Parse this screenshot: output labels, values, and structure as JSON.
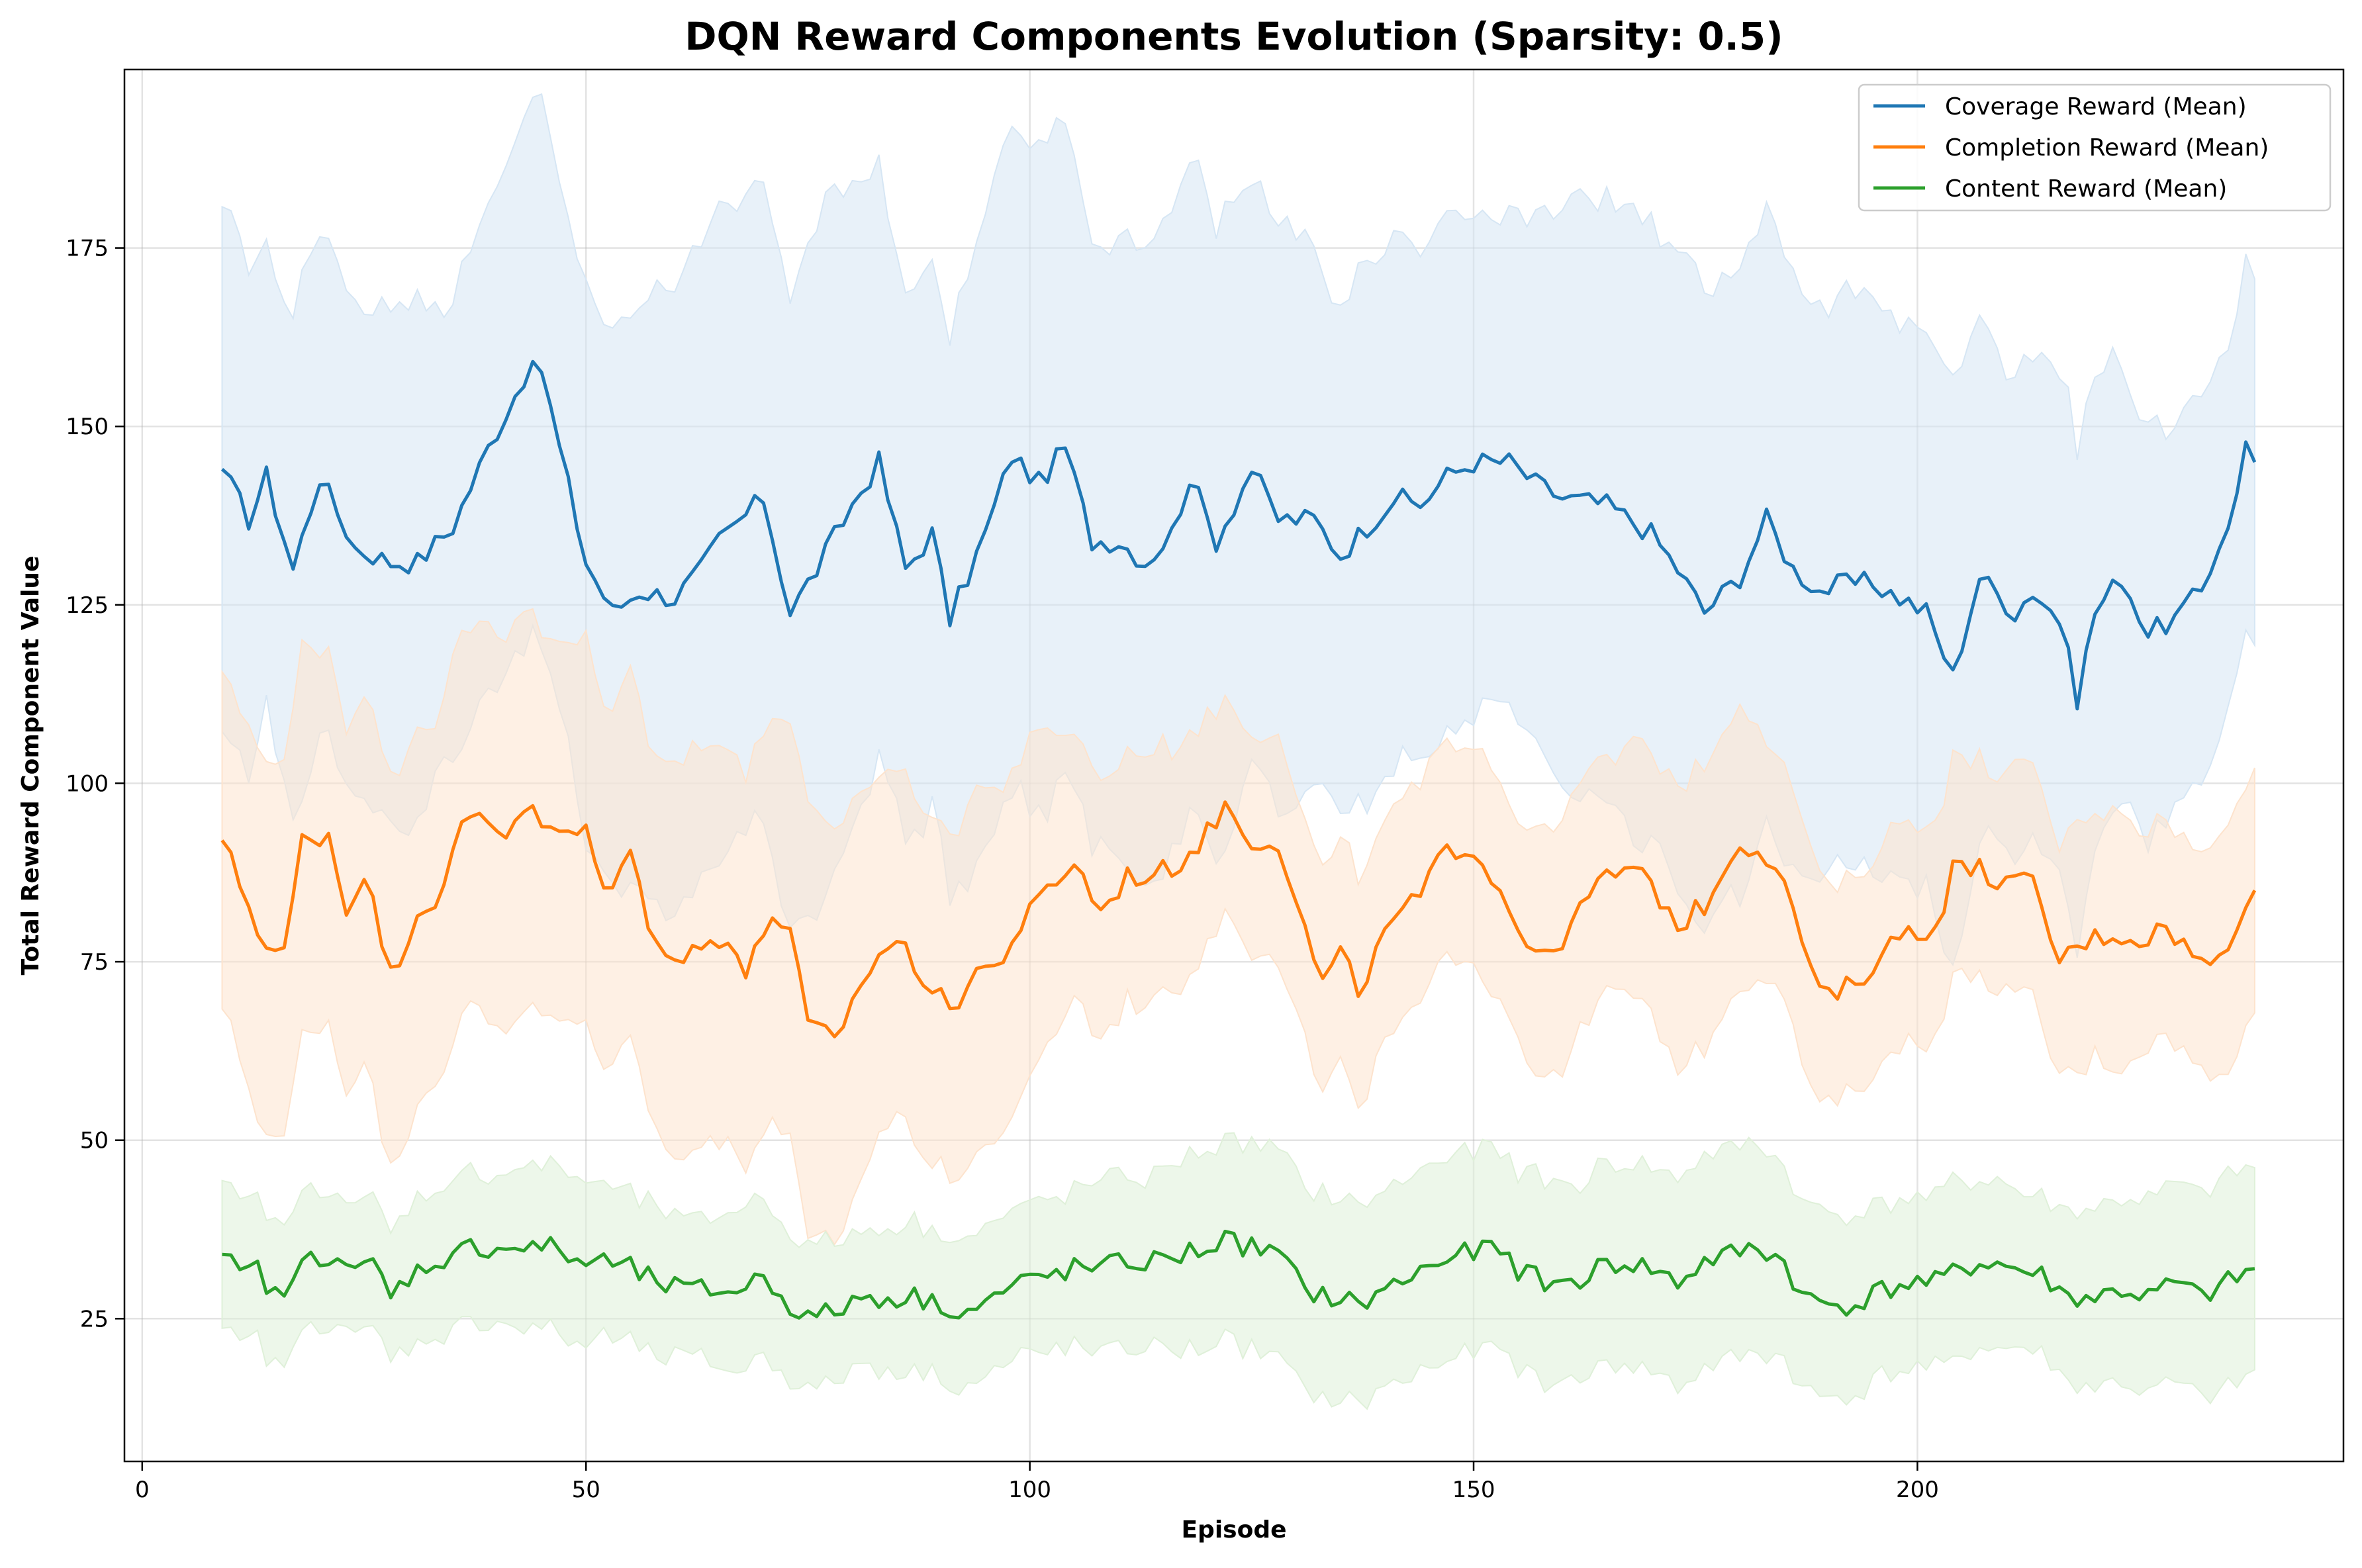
{
  "chart_data": {
    "type": "line",
    "title": "DQN Reward Components Evolution (Sparsity: 0.5)",
    "xlabel": "Episode",
    "ylabel": "Total Reward Component Value",
    "xlim": [
      -2,
      248
    ],
    "ylim": [
      5,
      200
    ],
    "xticks": [
      0,
      50,
      100,
      150,
      200
    ],
    "yticks": [
      25,
      50,
      75,
      100,
      125,
      150,
      175
    ],
    "grid": true,
    "legend_position": "top-right",
    "series": [
      {
        "name": "Coverage Reward (Mean)",
        "color": "#1f77b4",
        "band_fill": "#d6e6f4",
        "points": [
          [
            9,
            144
          ],
          [
            12,
            137
          ],
          [
            14,
            143
          ],
          [
            17,
            130
          ],
          [
            20,
            143
          ],
          [
            24,
            133
          ],
          [
            28,
            131
          ],
          [
            31,
            131
          ],
          [
            35,
            136
          ],
          [
            39,
            147
          ],
          [
            43,
            157
          ],
          [
            45,
            158
          ],
          [
            47,
            147
          ],
          [
            50,
            131
          ],
          [
            53,
            124
          ],
          [
            56,
            127
          ],
          [
            60,
            126
          ],
          [
            63,
            130
          ],
          [
            65,
            134
          ],
          [
            70,
            140
          ],
          [
            73,
            124
          ],
          [
            76,
            130
          ],
          [
            80,
            139
          ],
          [
            83,
            145
          ],
          [
            86,
            130
          ],
          [
            89,
            135
          ],
          [
            91,
            123
          ],
          [
            95,
            135
          ],
          [
            98,
            146
          ],
          [
            101,
            142
          ],
          [
            104,
            147
          ],
          [
            107,
            134
          ],
          [
            110,
            134
          ],
          [
            113,
            131
          ],
          [
            116,
            135
          ],
          [
            118,
            143
          ],
          [
            121,
            134
          ],
          [
            125,
            144
          ],
          [
            128,
            137
          ],
          [
            132,
            137
          ],
          [
            135,
            132
          ],
          [
            138,
            136
          ],
          [
            141,
            140
          ],
          [
            144,
            139
          ],
          [
            147,
            143
          ],
          [
            150,
            145
          ],
          [
            154,
            145
          ],
          [
            157,
            142
          ],
          [
            160,
            140
          ],
          [
            165,
            139
          ],
          [
            170,
            135
          ],
          [
            173,
            130
          ],
          [
            176,
            124
          ],
          [
            180,
            129
          ],
          [
            183,
            137
          ],
          [
            186,
            130
          ],
          [
            189,
            127
          ],
          [
            192,
            128
          ],
          [
            195,
            128
          ],
          [
            198,
            126
          ],
          [
            201,
            124
          ],
          [
            204,
            115
          ],
          [
            207,
            129
          ],
          [
            211,
            124
          ],
          [
            213,
            127
          ],
          [
            216,
            123
          ],
          [
            218,
            112
          ],
          [
            220,
            124
          ],
          [
            223,
            129
          ],
          [
            226,
            121
          ],
          [
            229,
            123
          ],
          [
            232,
            127
          ],
          [
            236,
            140
          ],
          [
            237,
            148
          ],
          [
            238,
            145
          ]
        ],
        "band_width": 37
      },
      {
        "name": "Completion Reward (Mean)",
        "color": "#ff7f0e",
        "band_fill": "#fde3cd",
        "points": [
          [
            9,
            92
          ],
          [
            12,
            83
          ],
          [
            14,
            77
          ],
          [
            16,
            76
          ],
          [
            18,
            92
          ],
          [
            21,
            93
          ],
          [
            23,
            82
          ],
          [
            25,
            88
          ],
          [
            28,
            73
          ],
          [
            31,
            82
          ],
          [
            34,
            85
          ],
          [
            36,
            94
          ],
          [
            38,
            96
          ],
          [
            41,
            93
          ],
          [
            43,
            97
          ],
          [
            46,
            93
          ],
          [
            50,
            93
          ],
          [
            52,
            85
          ],
          [
            55,
            90
          ],
          [
            57,
            81
          ],
          [
            60,
            75
          ],
          [
            63,
            77
          ],
          [
            66,
            79
          ],
          [
            68,
            73
          ],
          [
            71,
            82
          ],
          [
            73,
            79
          ],
          [
            75,
            66
          ],
          [
            78,
            64
          ],
          [
            81,
            72
          ],
          [
            83,
            76
          ],
          [
            85,
            78
          ],
          [
            88,
            73
          ],
          [
            91,
            68
          ],
          [
            94,
            74
          ],
          [
            96,
            74
          ],
          [
            99,
            80
          ],
          [
            102,
            85
          ],
          [
            105,
            89
          ],
          [
            108,
            82
          ],
          [
            111,
            87
          ],
          [
            114,
            87
          ],
          [
            117,
            89
          ],
          [
            120,
            93
          ],
          [
            122,
            97
          ],
          [
            125,
            92
          ],
          [
            128,
            92
          ],
          [
            130,
            83
          ],
          [
            133,
            72
          ],
          [
            135,
            76
          ],
          [
            137,
            71
          ],
          [
            141,
            81
          ],
          [
            144,
            84
          ],
          [
            147,
            91
          ],
          [
            150,
            91
          ],
          [
            153,
            85
          ],
          [
            155,
            80
          ],
          [
            158,
            75
          ],
          [
            161,
            80
          ],
          [
            164,
            86
          ],
          [
            167,
            88
          ],
          [
            170,
            86
          ],
          [
            173,
            80
          ],
          [
            176,
            83
          ],
          [
            180,
            92
          ],
          [
            183,
            90
          ],
          [
            186,
            83
          ],
          [
            188,
            73
          ],
          [
            190,
            70
          ],
          [
            193,
            72
          ],
          [
            196,
            76
          ],
          [
            199,
            80
          ],
          [
            202,
            79
          ],
          [
            204,
            88
          ],
          [
            207,
            88
          ],
          [
            210,
            86
          ],
          [
            213,
            86
          ],
          [
            216,
            75
          ],
          [
            219,
            78
          ],
          [
            222,
            79
          ],
          [
            225,
            78
          ],
          [
            228,
            80
          ],
          [
            231,
            76
          ],
          [
            233,
            74
          ],
          [
            235,
            78
          ],
          [
            237,
            84
          ],
          [
            238,
            85
          ]
        ],
        "band_width": 23
      },
      {
        "name": "Content Reward (Mean)",
        "color": "#2ca02c",
        "band_fill": "#dff0d9",
        "points": [
          [
            9,
            34
          ],
          [
            11,
            31
          ],
          [
            13,
            32
          ],
          [
            15,
            28
          ],
          [
            17,
            30
          ],
          [
            19,
            34
          ],
          [
            22,
            34
          ],
          [
            24,
            31
          ],
          [
            26,
            33
          ],
          [
            28,
            28
          ],
          [
            30,
            31
          ],
          [
            33,
            33
          ],
          [
            35,
            34
          ],
          [
            37,
            35
          ],
          [
            40,
            35
          ],
          [
            43,
            35
          ],
          [
            46,
            35
          ],
          [
            49,
            33
          ],
          [
            52,
            33
          ],
          [
            55,
            32
          ],
          [
            58,
            30
          ],
          [
            61,
            29
          ],
          [
            64,
            29
          ],
          [
            67,
            29
          ],
          [
            70,
            31
          ],
          [
            73,
            27
          ],
          [
            75,
            25
          ],
          [
            78,
            26
          ],
          [
            81,
            28
          ],
          [
            84,
            28
          ],
          [
            87,
            28
          ],
          [
            90,
            27
          ],
          [
            93,
            26
          ],
          [
            96,
            28
          ],
          [
            99,
            30
          ],
          [
            102,
            31
          ],
          [
            105,
            32
          ],
          [
            108,
            32
          ],
          [
            111,
            33
          ],
          [
            114,
            33
          ],
          [
            117,
            34
          ],
          [
            120,
            35
          ],
          [
            122,
            36
          ],
          [
            125,
            35
          ],
          [
            128,
            34
          ],
          [
            131,
            29
          ],
          [
            134,
            28
          ],
          [
            137,
            27
          ],
          [
            140,
            29
          ],
          [
            143,
            31
          ],
          [
            146,
            33
          ],
          [
            149,
            34
          ],
          [
            152,
            35
          ],
          [
            155,
            32
          ],
          [
            158,
            30
          ],
          [
            161,
            30
          ],
          [
            164,
            32
          ],
          [
            167,
            33
          ],
          [
            170,
            32
          ],
          [
            173,
            30
          ],
          [
            176,
            33
          ],
          [
            179,
            34
          ],
          [
            182,
            35
          ],
          [
            185,
            33
          ],
          [
            187,
            28
          ],
          [
            190,
            27
          ],
          [
            193,
            27
          ],
          [
            196,
            29
          ],
          [
            199,
            30
          ],
          [
            202,
            30
          ],
          [
            205,
            32
          ],
          [
            208,
            33
          ],
          [
            211,
            32
          ],
          [
            214,
            31
          ],
          [
            217,
            28
          ],
          [
            220,
            28
          ],
          [
            223,
            29
          ],
          [
            226,
            28
          ],
          [
            229,
            30
          ],
          [
            232,
            28
          ],
          [
            235,
            30
          ],
          [
            238,
            32
          ]
        ],
        "band_width": 11
      }
    ]
  }
}
